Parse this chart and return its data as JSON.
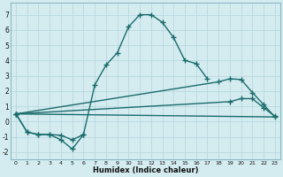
{
  "xlabel": "Humidex (Indice chaleur)",
  "background_color": "#d4ecf0",
  "grid_color": "#b8d8e0",
  "line_color": "#1a6b6b",
  "xlim": [
    -0.5,
    23.5
  ],
  "ylim": [
    -2.5,
    7.8
  ],
  "line1_x": [
    0,
    1,
    2,
    3,
    4,
    5,
    6,
    7,
    8,
    9,
    10,
    11,
    12,
    13,
    14,
    15,
    16,
    17
  ],
  "line1_y": [
    0.5,
    -0.7,
    -0.85,
    -0.85,
    -0.9,
    -1.2,
    -0.85,
    2.4,
    3.7,
    4.5,
    6.2,
    7.0,
    7.0,
    6.5,
    5.5,
    4.0,
    3.8,
    2.8
  ],
  "line2_x": [
    0,
    1,
    2,
    3,
    4,
    5,
    6
  ],
  "line2_y": [
    0.5,
    -0.7,
    -0.85,
    -0.85,
    -1.2,
    -1.8,
    -0.85
  ],
  "line3_x": [
    0,
    18,
    19,
    20,
    21,
    22,
    23
  ],
  "line3_y": [
    0.5,
    2.6,
    2.8,
    2.75,
    1.9,
    1.1,
    0.3
  ],
  "line4_x": [
    0,
    19,
    20,
    21,
    22,
    23
  ],
  "line4_y": [
    0.5,
    1.3,
    1.5,
    1.5,
    0.9,
    0.35
  ]
}
